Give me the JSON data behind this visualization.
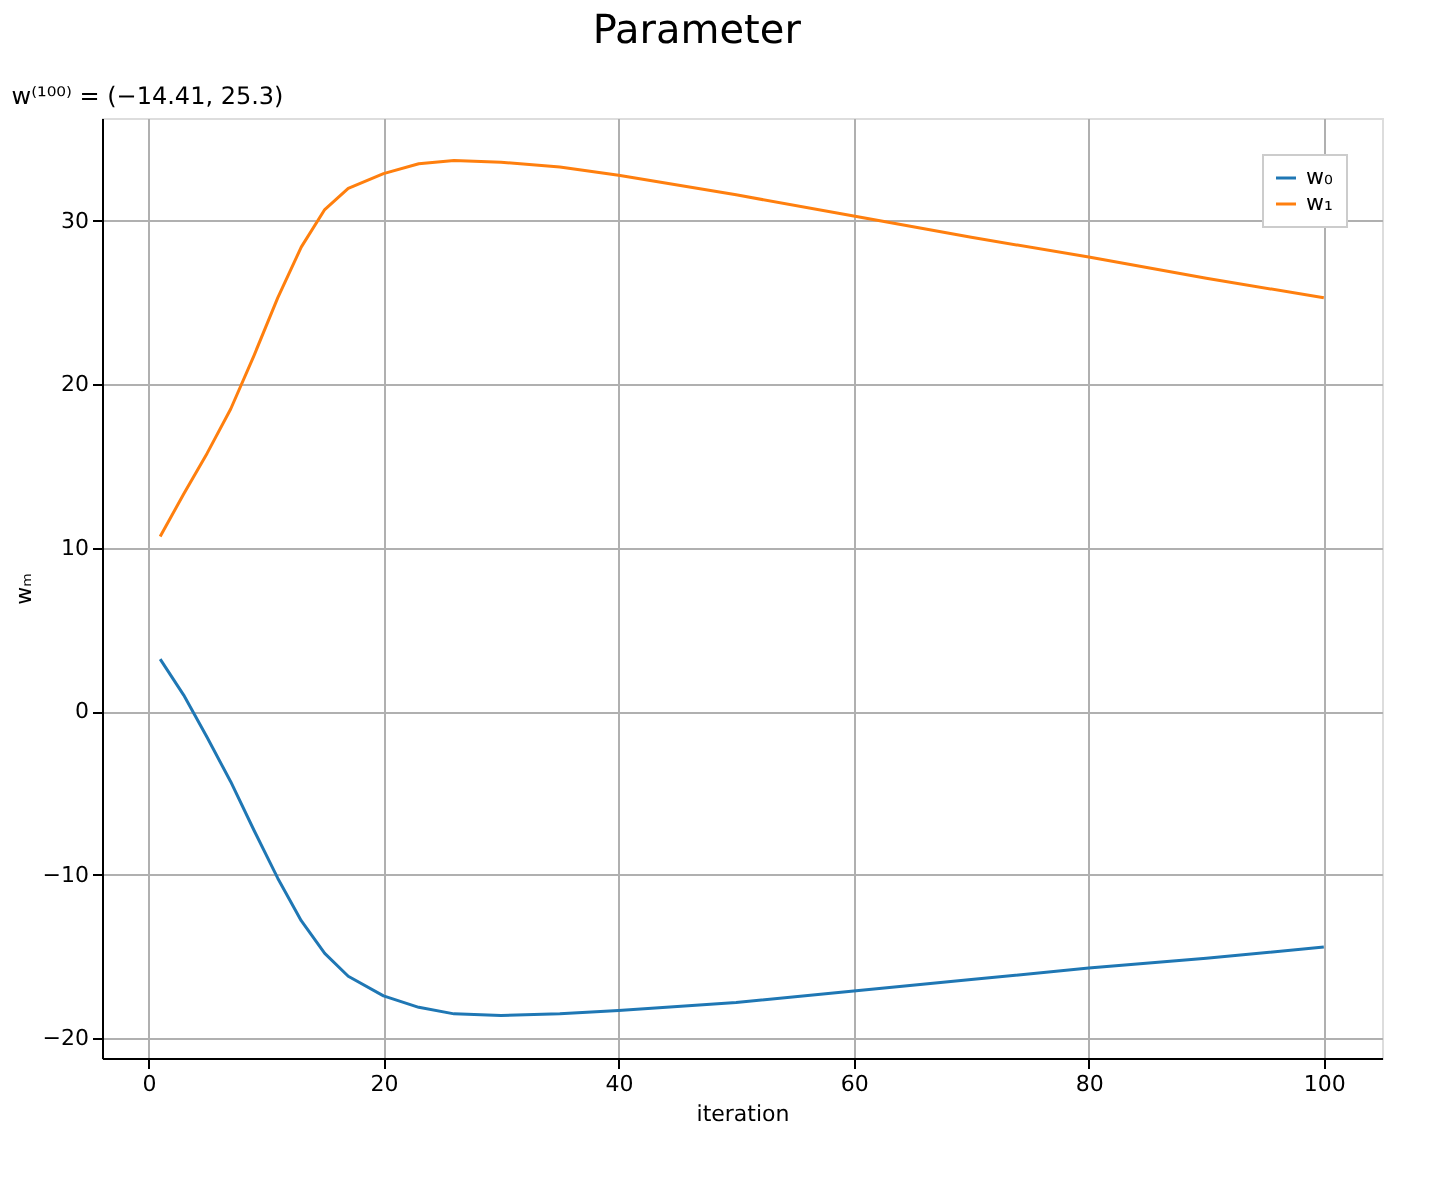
{
  "chart_data": {
    "type": "line",
    "title": "Parameter",
    "subtitle": "w⁽¹⁰⁰⁾ = (−14.41, 25.3)",
    "xlabel": "iteration",
    "ylabel": "wₘ",
    "x": [
      1,
      3,
      5,
      7,
      9,
      11,
      13,
      15,
      17,
      20,
      23,
      26,
      30,
      35,
      40,
      50,
      60,
      70,
      80,
      90,
      100
    ],
    "series": [
      {
        "name": "w₀",
        "color": "#1f77b4",
        "values": [
          3.2,
          1.0,
          -1.6,
          -4.3,
          -7.3,
          -10.2,
          -12.8,
          -14.8,
          -16.2,
          -17.4,
          -18.1,
          -18.5,
          -18.6,
          -18.5,
          -18.3,
          -17.8,
          -17.1,
          -16.4,
          -15.7,
          -15.1,
          -14.41
        ]
      },
      {
        "name": "w₁",
        "color": "#ff7f0e",
        "values": [
          10.7,
          13.3,
          15.8,
          18.5,
          21.8,
          25.3,
          28.4,
          30.7,
          32.0,
          32.9,
          33.5,
          33.7,
          33.6,
          33.3,
          32.8,
          31.6,
          30.3,
          29.0,
          27.8,
          26.5,
          25.3
        ]
      }
    ],
    "xlim": [
      -3.95,
      104.95
    ],
    "ylim": [
      -21.2,
      36.3
    ],
    "xticks": [
      0,
      20,
      40,
      60,
      80,
      100
    ],
    "yticks": [
      -20,
      -10,
      0,
      10,
      20,
      30
    ],
    "grid": true,
    "legend": "top right",
    "marker": "none",
    "line_style": "solid"
  }
}
